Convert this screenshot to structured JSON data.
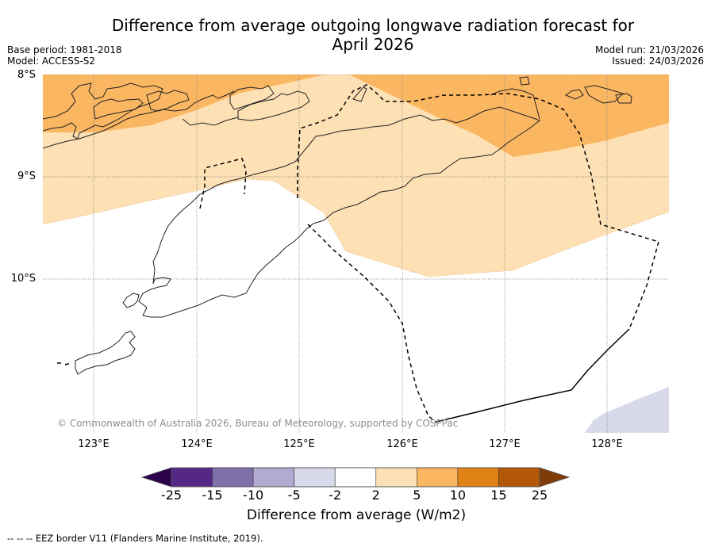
{
  "header": {
    "title_line1": "Difference from average outgoing longwave radiation forecast for",
    "title_line2": "April 2026",
    "base_period": "Base period: 1981-2018",
    "model": "Model: ACCESS-S2",
    "model_run": "Model run: 21/03/2026",
    "issued": "Issued: 24/03/2026"
  },
  "map": {
    "lat_labels": [
      "8°S",
      "9°S",
      "10°S"
    ],
    "lon_labels": [
      "123°E",
      "124°E",
      "125°E",
      "126°E",
      "127°E",
      "128°E"
    ],
    "lat_range": [
      -11.5,
      -8.0
    ],
    "lon_range": [
      122.5,
      128.6
    ],
    "copyright": "© Commonwealth of Australia 2026, Bureau of Meteorology, supported by COSPPac",
    "fill_colors": {
      "2_to_5": "#fde0b3",
      "5_to_10": "#fbb661",
      "-5_to_-2": "#d8d9ea"
    }
  },
  "colorbar": {
    "ticks": [
      "-25",
      "-15",
      "-10",
      "-5",
      "-2",
      "2",
      "5",
      "10",
      "15",
      "25"
    ],
    "colors": [
      "#552888",
      "#7f70a9",
      "#b1aad1",
      "#d8d9ea",
      "#ffffff",
      "#fde0b3",
      "#fbb661",
      "#e08215",
      "#b35806"
    ],
    "under_color": "#2d004b",
    "over_color": "#7f3b08",
    "title": "Difference from average (W/m2)"
  },
  "footnote": "--  --  -- EEZ border V11 (Flanders Marine Institute, 2019)."
}
